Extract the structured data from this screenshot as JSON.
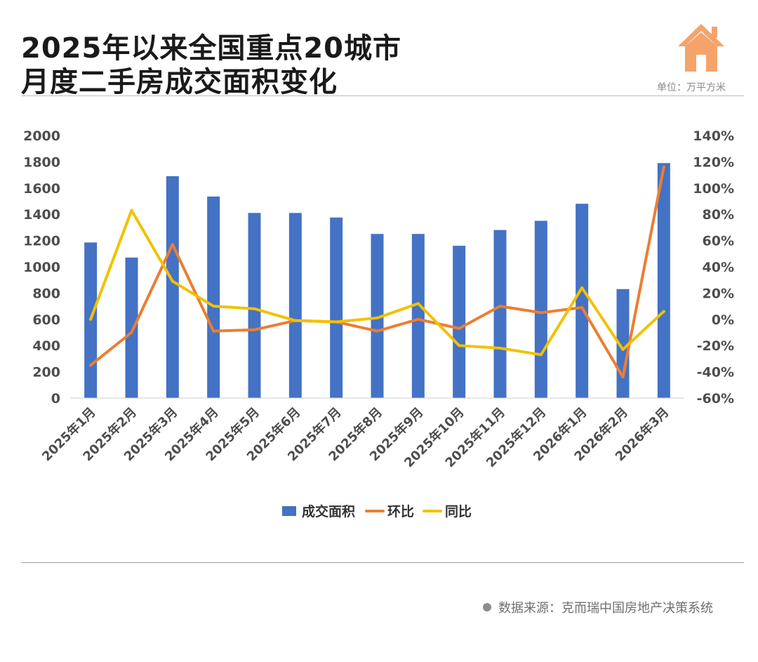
{
  "header": {
    "title_line1": "2025年以来全国重点20城市",
    "title_line2": "月度二手房成交面积变化",
    "unit": "单位：万平方米"
  },
  "footer": {
    "source": "数据来源：克而瑞中国房地产决策系统"
  },
  "icons": {
    "logo": "house-icon"
  },
  "colors": {
    "bar": "#4472C4",
    "ring": "#ED7D31",
    "yoy": "#F2C100",
    "house": "#F4A46A"
  },
  "chart_data": {
    "type": "bar",
    "categories": [
      "2025年1月",
      "2025年2月",
      "2025年3月",
      "2025年4月",
      "2025年5月",
      "2025年6月",
      "2025年7月",
      "2025年8月",
      "2025年9月",
      "2025年10月",
      "2025年11月",
      "2025年12月",
      "2026年1月",
      "2026年2月",
      "2026年3月"
    ],
    "series": [
      {
        "name": "成交面积",
        "type": "bar",
        "axis": "left",
        "color": "#4472C4",
        "values": [
          1185,
          1070,
          1690,
          1535,
          1410,
          1410,
          1375,
          1250,
          1250,
          1160,
          1280,
          1350,
          1480,
          830,
          1790
        ]
      },
      {
        "name": "环比",
        "type": "line",
        "axis": "right",
        "color": "#ED7D31",
        "values": [
          -35,
          -10,
          57,
          -9,
          -8,
          -1,
          -2,
          -9,
          0,
          -7,
          10,
          5,
          9,
          -44,
          116
        ]
      },
      {
        "name": "同比",
        "type": "line",
        "axis": "right",
        "color": "#F2C100",
        "values": [
          0,
          83,
          29,
          10,
          8,
          -1,
          -2,
          1,
          12,
          -20,
          -22,
          -27,
          24,
          -23,
          6
        ]
      }
    ],
    "y_left": {
      "min": 0,
      "max": 2000,
      "ticks": [
        0,
        200,
        400,
        600,
        800,
        1000,
        1200,
        1400,
        1600,
        1800,
        2000
      ]
    },
    "y_right": {
      "min": -60,
      "max": 140,
      "ticks": [
        "-60%",
        "-40%",
        "-20%",
        "0%",
        "20%",
        "40%",
        "60%",
        "80%",
        "100%",
        "120%",
        "140%"
      ]
    },
    "legend": [
      "成交面积",
      "环比",
      "同比"
    ],
    "legend_position": "bottom",
    "grid": false
  }
}
